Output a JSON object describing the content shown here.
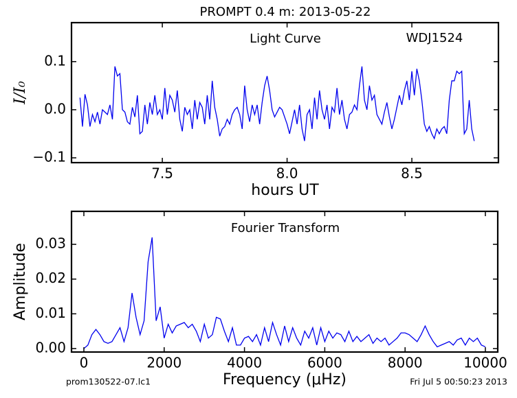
{
  "chart_data": [
    {
      "type": "line",
      "title": "PROMPT 0.4 m:  2013-05-22",
      "annotations": [
        "Light Curve",
        "WDJ1524"
      ],
      "xlabel": "hours UT",
      "ylabel": "I/I₀",
      "xlim": [
        7.136,
        8.847
      ],
      "ylim": [
        -0.11,
        0.181
      ],
      "xticks": [
        7.5,
        {
          "value": 8,
          "label": "8.0"
        },
        8.5
      ],
      "yticks": [
        {
          "value": -0.1,
          "label": "−0.1"
        },
        {
          "value": 0,
          "label": "0.0"
        },
        0.1
      ],
      "series": [
        {
          "color": "#0000ee",
          "x": [
            7.17,
            7.18,
            7.19,
            7.2,
            7.21,
            7.22,
            7.23,
            7.24,
            7.25,
            7.26,
            7.27,
            7.28,
            7.29,
            7.3,
            7.31,
            7.32,
            7.33,
            7.34,
            7.35,
            7.36,
            7.37,
            7.38,
            7.39,
            7.4,
            7.41,
            7.42,
            7.43,
            7.44,
            7.45,
            7.46,
            7.47,
            7.48,
            7.49,
            7.5,
            7.51,
            7.52,
            7.53,
            7.54,
            7.55,
            7.56,
            7.57,
            7.58,
            7.59,
            7.6,
            7.61,
            7.62,
            7.63,
            7.64,
            7.65,
            7.66,
            7.67,
            7.68,
            7.69,
            7.7,
            7.71,
            7.72,
            7.73,
            7.74,
            7.75,
            7.76,
            7.77,
            7.78,
            7.79,
            7.8,
            7.81,
            7.82,
            7.83,
            7.84,
            7.85,
            7.86,
            7.87,
            7.88,
            7.89,
            7.9,
            7.91,
            7.92,
            7.93,
            7.94,
            7.95,
            7.96,
            7.97,
            7.98,
            7.99,
            8.0,
            8.01,
            8.02,
            8.03,
            8.04,
            8.05,
            8.06,
            8.07,
            8.08,
            8.09,
            8.1,
            8.11,
            8.12,
            8.13,
            8.14,
            8.15,
            8.16,
            8.17,
            8.18,
            8.19,
            8.2,
            8.21,
            8.22,
            8.23,
            8.24,
            8.25,
            8.26,
            8.27,
            8.28,
            8.29,
            8.3,
            8.31,
            8.32,
            8.33,
            8.34,
            8.35,
            8.36,
            8.37,
            8.38,
            8.39,
            8.4,
            8.41,
            8.42,
            8.43,
            8.44,
            8.45,
            8.46,
            8.47,
            8.48,
            8.49,
            8.5,
            8.51,
            8.52,
            8.53,
            8.54,
            8.55,
            8.56,
            8.57,
            8.58,
            8.59,
            8.6,
            8.61,
            8.62,
            8.63,
            8.64,
            8.65,
            8.66,
            8.67,
            8.68,
            8.69,
            8.7,
            8.71,
            8.72,
            8.73,
            8.74,
            8.75
          ],
          "values": [
            0.025,
            -0.035,
            0.032,
            0.01,
            -0.035,
            -0.01,
            -0.025,
            -0.005,
            -0.03,
            0.0,
            -0.005,
            -0.01,
            0.01,
            -0.02,
            0.09,
            0.07,
            0.075,
            0.0,
            -0.005,
            -0.025,
            -0.03,
            0.005,
            -0.015,
            0.03,
            -0.05,
            -0.045,
            0.01,
            -0.03,
            0.015,
            -0.01,
            0.03,
            -0.01,
            0.0,
            -0.02,
            0.045,
            -0.01,
            0.03,
            0.02,
            -0.005,
            0.04,
            -0.02,
            -0.045,
            0.005,
            -0.01,
            0.0,
            -0.04,
            0.02,
            -0.02,
            0.015,
            0.005,
            -0.03,
            0.03,
            -0.02,
            0.06,
            0.005,
            -0.02,
            -0.055,
            -0.04,
            -0.035,
            -0.02,
            -0.03,
            -0.01,
            0.0,
            0.005,
            -0.01,
            -0.04,
            0.05,
            0.0,
            -0.025,
            0.01,
            -0.01,
            0.01,
            -0.03,
            0.015,
            0.05,
            0.07,
            0.04,
            0.0,
            -0.015,
            -0.005,
            0.005,
            0.0,
            -0.015,
            -0.03,
            -0.05,
            -0.025,
            0.0,
            -0.03,
            0.01,
            -0.04,
            -0.065,
            -0.01,
            0.0,
            -0.04,
            0.025,
            -0.02,
            0.04,
            0.0,
            -0.02,
            0.01,
            -0.04,
            0.005,
            -0.005,
            0.045,
            -0.01,
            0.02,
            -0.02,
            -0.04,
            -0.01,
            -0.005,
            0.01,
            0.0,
            0.05,
            0.09,
            0.02,
            0.0,
            0.05,
            0.02,
            0.03,
            -0.01,
            -0.02,
            -0.03,
            -0.005,
            0.015,
            -0.015,
            -0.04,
            -0.02,
            0.005,
            0.03,
            0.01,
            0.04,
            0.06,
            0.02,
            0.08,
            0.03,
            0.085,
            0.06,
            0.02,
            -0.03,
            -0.045,
            -0.035,
            -0.05,
            -0.06,
            -0.04,
            -0.05,
            -0.04,
            -0.035,
            -0.05,
            0.02,
            0.06,
            0.06,
            0.08,
            0.075,
            0.08,
            -0.05,
            -0.04,
            0.02,
            -0.04,
            -0.065
          ]
        }
      ]
    },
    {
      "type": "line",
      "annotations": [
        "Fourier Transform"
      ],
      "xlabel": "Frequency (μHz)",
      "ylabel": "Amplitude",
      "xlim": [
        -308,
        10308
      ],
      "ylim": [
        -0.001,
        0.0395
      ],
      "xticks": [
        0,
        2000,
        4000,
        6000,
        8000,
        10000
      ],
      "yticks": [
        {
          "value": 0,
          "label": "0.00"
        },
        0.01,
        0.02,
        0.03
      ],
      "footer_left": "prom130522-07.lc1",
      "footer_right": "Fri Jul  5 00:50:23 2013",
      "series": [
        {
          "color": "#0000ee",
          "x": [
            0,
            100,
            200,
            300,
            400,
            500,
            600,
            700,
            800,
            900,
            1000,
            1100,
            1200,
            1300,
            1400,
            1500,
            1600,
            1700,
            1800,
            1900,
            2000,
            2100,
            2200,
            2300,
            2400,
            2500,
            2600,
            2700,
            2800,
            2900,
            3000,
            3100,
            3200,
            3300,
            3400,
            3500,
            3600,
            3700,
            3800,
            3900,
            4000,
            4100,
            4200,
            4300,
            4400,
            4500,
            4600,
            4700,
            4800,
            4900,
            5000,
            5100,
            5200,
            5300,
            5400,
            5500,
            5600,
            5700,
            5800,
            5900,
            6000,
            6100,
            6200,
            6300,
            6400,
            6500,
            6600,
            6700,
            6800,
            6900,
            7000,
            7100,
            7200,
            7300,
            7400,
            7500,
            7600,
            7700,
            7800,
            7900,
            8000,
            8100,
            8200,
            8300,
            8400,
            8500,
            8600,
            8700,
            8800,
            8900,
            9000,
            9100,
            9200,
            9300,
            9400,
            9500,
            9600,
            9700,
            9800,
            9900,
            10000
          ],
          "values": [
            0.0,
            0.001,
            0.004,
            0.0055,
            0.004,
            0.002,
            0.0015,
            0.002,
            0.004,
            0.006,
            0.002,
            0.006,
            0.016,
            0.009,
            0.004,
            0.008,
            0.025,
            0.032,
            0.008,
            0.012,
            0.003,
            0.007,
            0.0045,
            0.0065,
            0.007,
            0.0075,
            0.006,
            0.007,
            0.005,
            0.002,
            0.007,
            0.003,
            0.004,
            0.009,
            0.0085,
            0.005,
            0.002,
            0.006,
            0.001,
            0.001,
            0.003,
            0.0035,
            0.002,
            0.004,
            0.001,
            0.006,
            0.002,
            0.0075,
            0.004,
            0.001,
            0.0065,
            0.002,
            0.006,
            0.003,
            0.001,
            0.005,
            0.003,
            0.006,
            0.001,
            0.006,
            0.002,
            0.005,
            0.003,
            0.0045,
            0.004,
            0.002,
            0.005,
            0.002,
            0.0035,
            0.002,
            0.003,
            0.004,
            0.0015,
            0.003,
            0.002,
            0.003,
            0.001,
            0.002,
            0.003,
            0.0045,
            0.0045,
            0.004,
            0.003,
            0.002,
            0.004,
            0.0065,
            0.004,
            0.002,
            0.0005,
            0.001,
            0.0015,
            0.002,
            0.001,
            0.0025,
            0.003,
            0.001,
            0.003,
            0.002,
            0.003,
            0.001,
            0.0005
          ]
        }
      ]
    }
  ]
}
